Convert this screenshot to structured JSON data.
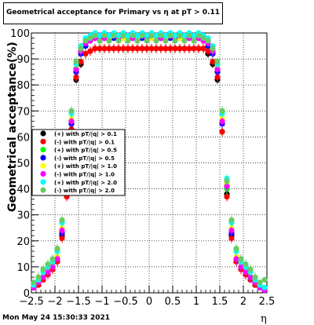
{
  "header": {
    "title": "Geometrical acceptance for Primary vs    η  at pT > 0.11"
  },
  "footer": {
    "timestamp": "Mon May 24 15:30:33 2021"
  },
  "chart_data": {
    "type": "scatter",
    "title": "Geometrical acceptance for Primary vs    η  at pT > 0.11",
    "xlabel": "η",
    "ylabel": "Geometrical acceptance(%)",
    "xlim": [
      -2.5,
      2.5
    ],
    "ylim": [
      0,
      100
    ],
    "x_ticks": [
      -2.5,
      -2,
      -1.5,
      -1,
      -0.5,
      0,
      0.5,
      1,
      1.5,
      2,
      2.5
    ],
    "x_tick_labels": [
      "−2.5",
      "−2",
      "−1.5",
      "−1",
      "−0.5",
      "0",
      "0.5",
      "1",
      "1.5",
      "2",
      "2.5"
    ],
    "y_ticks": [
      0,
      10,
      20,
      30,
      40,
      50,
      60,
      70,
      80,
      90,
      100
    ],
    "y_tick_labels": [
      "0",
      "10",
      "20",
      "30",
      "40",
      "50",
      "60",
      "70",
      "80",
      "90",
      "100"
    ],
    "grid": true,
    "legend_position": "middle-left",
    "x": [
      -2.45,
      -2.35,
      -2.25,
      -2.15,
      -2.05,
      -1.95,
      -1.85,
      -1.75,
      -1.65,
      -1.55,
      -1.45,
      -1.35,
      -1.25,
      -1.15,
      -1.05,
      -0.95,
      -0.85,
      -0.75,
      -0.65,
      -0.55,
      -0.45,
      -0.35,
      -0.25,
      -0.15,
      -0.05,
      0.05,
      0.15,
      0.25,
      0.35,
      0.45,
      0.55,
      0.65,
      0.75,
      0.85,
      0.95,
      1.05,
      1.15,
      1.25,
      1.35,
      1.45,
      1.55,
      1.65,
      1.75,
      1.85,
      1.95,
      2.05,
      2.15,
      2.25,
      2.35,
      2.45
    ],
    "series": [
      {
        "name": "(+) with pT/|q| > 0.1",
        "color": "#000000",
        "values": [
          2,
          3,
          5,
          7,
          9,
          12,
          22,
          38,
          62,
          82,
          88,
          92,
          93,
          94,
          94,
          94,
          94,
          94,
          94,
          94,
          94,
          94,
          94,
          94,
          94,
          94,
          94,
          94,
          94,
          94,
          94,
          94,
          94,
          94,
          94,
          94,
          94,
          92,
          88,
          82,
          62,
          38,
          22,
          12,
          9,
          7,
          5,
          3,
          2,
          1
        ]
      },
      {
        "name": "(-) with pT/|q| > 0.1",
        "color": "#ff0000",
        "values": [
          2,
          3,
          5,
          7,
          9,
          12,
          21,
          37,
          63,
          83,
          89,
          92,
          93,
          94,
          94,
          94,
          94,
          94,
          94,
          94,
          94,
          94,
          94,
          94,
          94,
          94,
          94,
          94,
          94,
          94,
          94,
          94,
          94,
          94,
          94,
          94,
          94,
          93,
          89,
          83,
          62,
          37,
          21,
          12,
          9,
          7,
          5,
          3,
          2,
          1
        ]
      },
      {
        "name": "(+) with pT/|q| > 0.5",
        "color": "#00ff00",
        "values": [
          2,
          4,
          6,
          8,
          10,
          13,
          24,
          40,
          66,
          86,
          92,
          95,
          97,
          98,
          98,
          99,
          98,
          99,
          98,
          99,
          98,
          99,
          98,
          99,
          98,
          99,
          98,
          99,
          98,
          99,
          98,
          99,
          98,
          99,
          98,
          98,
          97,
          95,
          92,
          86,
          66,
          40,
          24,
          13,
          10,
          8,
          6,
          4,
          2,
          1
        ]
      },
      {
        "name": "(-) with pT/|q| > 0.5",
        "color": "#0000ff",
        "values": [
          2,
          4,
          6,
          8,
          10,
          13,
          23,
          41,
          65,
          85,
          92,
          95,
          97,
          98,
          98,
          98,
          99,
          98,
          99,
          98,
          99,
          98,
          99,
          98,
          99,
          98,
          99,
          98,
          99,
          98,
          99,
          98,
          99,
          98,
          98,
          98,
          97,
          95,
          92,
          85,
          65,
          41,
          23,
          13,
          10,
          8,
          6,
          4,
          2,
          1
        ]
      },
      {
        "name": "(+) with pT/|q| > 1.0",
        "color": "#ffff00",
        "values": [
          3,
          4,
          6,
          8,
          10,
          14,
          25,
          42,
          67,
          87,
          93,
          96,
          97,
          98,
          99,
          99,
          98,
          99,
          99,
          98,
          99,
          99,
          98,
          99,
          99,
          98,
          99,
          99,
          98,
          99,
          99,
          98,
          99,
          99,
          98,
          99,
          97,
          96,
          93,
          87,
          67,
          42,
          25,
          14,
          10,
          8,
          6,
          4,
          3,
          1
        ]
      },
      {
        "name": "(-) with pT/|q| > 1.0",
        "color": "#ff00ff",
        "values": [
          2,
          4,
          6,
          8,
          10,
          13,
          24,
          41,
          66,
          86,
          93,
          96,
          97,
          98,
          99,
          98,
          99,
          99,
          98,
          99,
          99,
          98,
          99,
          99,
          98,
          99,
          99,
          98,
          99,
          99,
          98,
          99,
          99,
          98,
          99,
          98,
          97,
          96,
          93,
          86,
          66,
          41,
          24,
          13,
          10,
          8,
          6,
          4,
          2,
          1
        ]
      },
      {
        "name": "(+) with pT/|q| > 2.0",
        "color": "#00ffff",
        "values": [
          3,
          5,
          8,
          10,
          12,
          16,
          27,
          44,
          69,
          88,
          95,
          98,
          99,
          100,
          99,
          100,
          99,
          100,
          99,
          100,
          99,
          100,
          99,
          100,
          99,
          100,
          99,
          100,
          99,
          100,
          99,
          100,
          99,
          100,
          99,
          100,
          99,
          98,
          95,
          88,
          69,
          44,
          27,
          16,
          12,
          10,
          8,
          5,
          3,
          2
        ]
      },
      {
        "name": "(-) with pT/|q| > 2.0",
        "color": "#66cc66",
        "values": [
          4,
          6,
          9,
          11,
          13,
          17,
          28,
          43,
          70,
          89,
          94,
          97,
          98,
          99,
          97,
          99,
          97,
          99,
          97,
          99,
          97,
          99,
          97,
          99,
          97,
          99,
          97,
          99,
          97,
          99,
          97,
          99,
          97,
          99,
          97,
          99,
          98,
          97,
          94,
          89,
          70,
          43,
          28,
          17,
          13,
          11,
          9,
          6,
          4,
          5
        ]
      }
    ]
  }
}
